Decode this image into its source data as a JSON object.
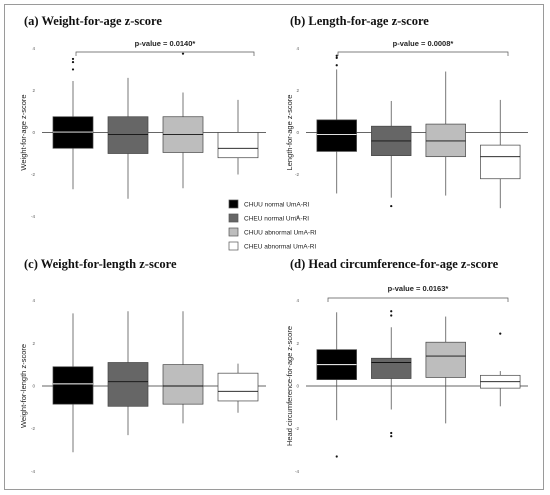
{
  "legend": {
    "entries": [
      {
        "label": "CHUU normal UmA-RI",
        "color": "#000000"
      },
      {
        "label": "CHEU normal UmA-RI",
        "color": "#666666"
      },
      {
        "label": "CHUU abnormal UmA-RI",
        "color": "#bdbdbd"
      },
      {
        "label": "CHEU abnormal UmA-RI",
        "color": "#ffffff"
      }
    ]
  },
  "chart_data": [
    {
      "type": "boxplot",
      "title": "(a) Weight-for-age z-score",
      "ylabel": "Weight-for-age z-score",
      "ylim": [
        -4.4,
        4.4
      ],
      "yticks": [
        "-4",
        "-2",
        "0",
        "2",
        "4"
      ],
      "reference_line": 0,
      "pvalue": "p-value = 0.0140*",
      "groups": [
        {
          "name": "CHUU normal UmA-RI",
          "min": -2.7,
          "q1": -0.75,
          "median": 0.02,
          "q3": 0.75,
          "max": 2.45,
          "outliers": [
            3.0,
            3.35,
            3.5
          ]
        },
        {
          "name": "CHEU normal UmA-RI",
          "min": -3.15,
          "q1": -1.0,
          "median": -0.1,
          "q3": 0.75,
          "max": 2.6,
          "outliers": []
        },
        {
          "name": "CHUU abnormal UmA-RI",
          "min": -2.65,
          "q1": -0.95,
          "median": -0.1,
          "q3": 0.75,
          "max": 1.9,
          "outliers": [
            3.75
          ]
        },
        {
          "name": "CHEU abnormal UmA-RI",
          "min": -2.0,
          "q1": -1.2,
          "median": -0.75,
          "q3": 0.0,
          "max": 1.55,
          "outliers": []
        }
      ]
    },
    {
      "type": "boxplot",
      "title": "(b) Length-for-age z-score",
      "ylabel": "Length-for-age z-score",
      "ylim": [
        -4.4,
        4.4
      ],
      "yticks": [
        "-4",
        "-2",
        "0",
        "2",
        "4"
      ],
      "reference_line": 0,
      "pvalue": "p-value = 0.0008*",
      "groups": [
        {
          "name": "CHUU normal UmA-RI",
          "min": -2.9,
          "q1": -0.9,
          "median": -0.1,
          "q3": 0.6,
          "max": 3.0,
          "outliers": [
            3.2,
            3.55,
            3.65
          ]
        },
        {
          "name": "CHEU normal UmA-RI",
          "min": -3.1,
          "q1": -1.1,
          "median": -0.4,
          "q3": 0.3,
          "max": 1.5,
          "outliers": [
            -3.5
          ]
        },
        {
          "name": "CHUU abnormal UmA-RI",
          "min": -3.0,
          "q1": -1.15,
          "median": -0.4,
          "q3": 0.4,
          "max": 2.9,
          "outliers": []
        },
        {
          "name": "CHEU abnormal UmA-RI",
          "min": -3.6,
          "q1": -2.2,
          "median": -1.15,
          "q3": -0.6,
          "max": 1.55,
          "outliers": []
        }
      ]
    },
    {
      "type": "boxplot",
      "title": "(c) Weight-for-length z-score",
      "ylabel": "Weight-for-length z-score",
      "ylim": [
        -4.4,
        4.4
      ],
      "yticks": [
        "-4",
        "-2",
        "0",
        "2",
        "4"
      ],
      "reference_line": 0,
      "pvalue": "",
      "groups": [
        {
          "name": "CHUU normal UmA-RI",
          "min": -3.1,
          "q1": -0.85,
          "median": 0.1,
          "q3": 0.9,
          "max": 3.4,
          "outliers": []
        },
        {
          "name": "CHEU normal UmA-RI",
          "min": -2.3,
          "q1": -0.95,
          "median": 0.2,
          "q3": 1.1,
          "max": 3.5,
          "outliers": []
        },
        {
          "name": "CHUU abnormal UmA-RI",
          "min": -1.75,
          "q1": -0.85,
          "median": 0.0,
          "q3": 1.0,
          "max": 3.5,
          "outliers": []
        },
        {
          "name": "CHEU abnormal UmA-RI",
          "min": -1.25,
          "q1": -0.7,
          "median": -0.25,
          "q3": 0.6,
          "max": 1.05,
          "outliers": []
        }
      ]
    },
    {
      "type": "boxplot",
      "title": "(d) Head circumference-for-age z-score",
      "ylabel": "Head circumference-for-age z-score",
      "ylim": [
        -4.4,
        4.4
      ],
      "yticks": [
        "-4",
        "-2",
        "0",
        "2",
        "4"
      ],
      "reference_line": 0,
      "pvalue": "p-value = 0.0163*",
      "groups": [
        {
          "name": "CHUU normal UmA-RI",
          "min": -1.6,
          "q1": 0.3,
          "median": 1.0,
          "q3": 1.7,
          "max": 3.45,
          "outliers": [
            -3.3
          ]
        },
        {
          "name": "CHEU normal UmA-RI",
          "min": -1.1,
          "q1": 0.35,
          "median": 1.1,
          "q3": 1.3,
          "max": 2.75,
          "outliers": [
            -2.2,
            -2.35,
            3.3,
            3.5
          ]
        },
        {
          "name": "CHUU abnormal UmA-RI",
          "min": -1.75,
          "q1": 0.4,
          "median": 1.4,
          "q3": 2.05,
          "max": 3.25,
          "outliers": []
        },
        {
          "name": "CHEU abnormal UmA-RI",
          "min": -0.95,
          "q1": -0.1,
          "median": 0.2,
          "q3": 0.5,
          "max": 0.7,
          "outliers": [
            2.45
          ]
        }
      ]
    }
  ]
}
